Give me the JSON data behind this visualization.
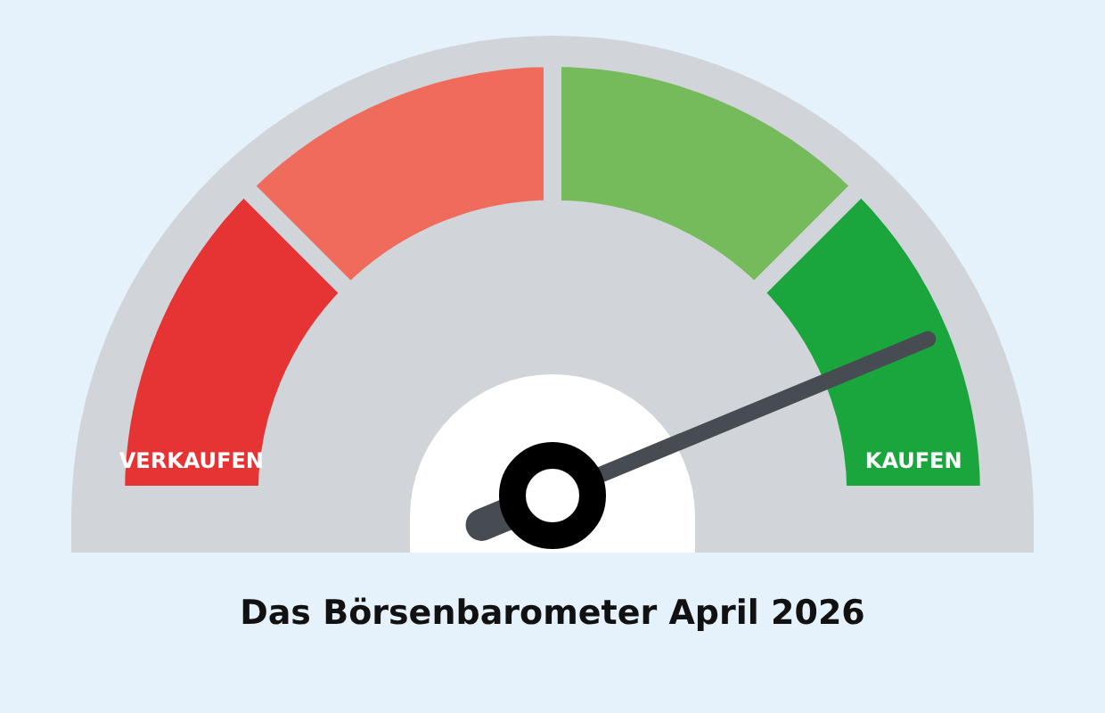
{
  "chart_data": {
    "type": "donut",
    "title": "Das Börsenbarometer April 2026",
    "categories": [
      "VERKAUFEN",
      null,
      null,
      "KAUFEN"
    ],
    "values": [
      25,
      25,
      25,
      25
    ],
    "colors": [
      "#e63333",
      "#ef6b5b",
      "#76bb5b",
      "#1ba63d"
    ],
    "needle": "KAUFEN",
    "legend": false
  }
}
